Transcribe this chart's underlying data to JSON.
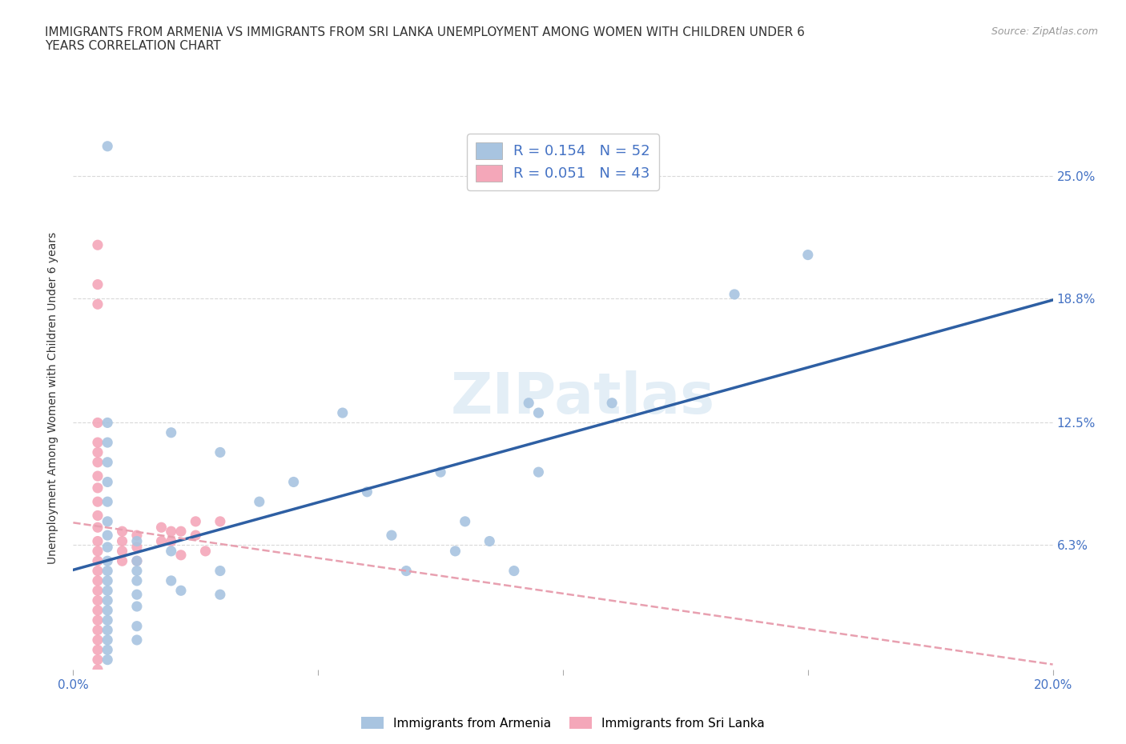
{
  "title": "IMMIGRANTS FROM ARMENIA VS IMMIGRANTS FROM SRI LANKA UNEMPLOYMENT AMONG WOMEN WITH CHILDREN UNDER 6\nYEARS CORRELATION CHART",
  "source": "Source: ZipAtlas.com",
  "xlim": [
    0.0,
    0.22
  ],
  "ylim": [
    -0.005,
    0.285
  ],
  "plot_xlim": [
    0.0,
    0.2
  ],
  "plot_ylim": [
    0.0,
    0.275
  ],
  "xtick_vals": [
    0.0,
    0.05,
    0.1,
    0.15,
    0.2
  ],
  "xtick_labels": [
    "0.0%",
    "",
    "",
    "",
    "20.0%"
  ],
  "ytick_vals": [
    0.0,
    0.063,
    0.125,
    0.188,
    0.25
  ],
  "right_ytick_labels": [
    "25.0%",
    "18.8%",
    "12.5%",
    "6.3%"
  ],
  "right_ytick_vals": [
    0.25,
    0.188,
    0.125,
    0.063
  ],
  "armenia_color": "#a8c4e0",
  "srilanka_color": "#f4a7b9",
  "armenia_R": 0.154,
  "armenia_N": 52,
  "srilanka_R": 0.051,
  "srilanka_N": 43,
  "watermark": "ZIPatlas",
  "armenia_points": [
    [
      0.007,
      0.265
    ],
    [
      0.007,
      0.125
    ],
    [
      0.007,
      0.115
    ],
    [
      0.007,
      0.105
    ],
    [
      0.007,
      0.095
    ],
    [
      0.007,
      0.085
    ],
    [
      0.007,
      0.075
    ],
    [
      0.007,
      0.068
    ],
    [
      0.007,
      0.062
    ],
    [
      0.007,
      0.055
    ],
    [
      0.007,
      0.05
    ],
    [
      0.007,
      0.045
    ],
    [
      0.007,
      0.04
    ],
    [
      0.007,
      0.035
    ],
    [
      0.007,
      0.03
    ],
    [
      0.007,
      0.025
    ],
    [
      0.007,
      0.02
    ],
    [
      0.007,
      0.015
    ],
    [
      0.007,
      0.01
    ],
    [
      0.007,
      0.005
    ],
    [
      0.013,
      0.065
    ],
    [
      0.013,
      0.055
    ],
    [
      0.013,
      0.05
    ],
    [
      0.013,
      0.045
    ],
    [
      0.013,
      0.038
    ],
    [
      0.013,
      0.032
    ],
    [
      0.013,
      0.022
    ],
    [
      0.013,
      0.015
    ],
    [
      0.02,
      0.12
    ],
    [
      0.02,
      0.06
    ],
    [
      0.02,
      0.045
    ],
    [
      0.022,
      0.04
    ],
    [
      0.03,
      0.11
    ],
    [
      0.03,
      0.05
    ],
    [
      0.03,
      0.038
    ],
    [
      0.038,
      0.085
    ],
    [
      0.045,
      0.095
    ],
    [
      0.055,
      0.13
    ],
    [
      0.06,
      0.09
    ],
    [
      0.065,
      0.068
    ],
    [
      0.068,
      0.05
    ],
    [
      0.075,
      0.1
    ],
    [
      0.078,
      0.06
    ],
    [
      0.08,
      0.075
    ],
    [
      0.085,
      0.065
    ],
    [
      0.09,
      0.05
    ],
    [
      0.093,
      0.135
    ],
    [
      0.095,
      0.13
    ],
    [
      0.095,
      0.1
    ],
    [
      0.11,
      0.135
    ],
    [
      0.135,
      0.19
    ],
    [
      0.15,
      0.21
    ]
  ],
  "srilanka_points": [
    [
      0.005,
      0.215
    ],
    [
      0.005,
      0.195
    ],
    [
      0.005,
      0.185
    ],
    [
      0.005,
      0.125
    ],
    [
      0.005,
      0.115
    ],
    [
      0.005,
      0.11
    ],
    [
      0.005,
      0.105
    ],
    [
      0.005,
      0.098
    ],
    [
      0.005,
      0.092
    ],
    [
      0.005,
      0.085
    ],
    [
      0.005,
      0.078
    ],
    [
      0.005,
      0.072
    ],
    [
      0.005,
      0.065
    ],
    [
      0.005,
      0.06
    ],
    [
      0.005,
      0.055
    ],
    [
      0.005,
      0.05
    ],
    [
      0.005,
      0.045
    ],
    [
      0.005,
      0.04
    ],
    [
      0.005,
      0.035
    ],
    [
      0.005,
      0.03
    ],
    [
      0.005,
      0.025
    ],
    [
      0.005,
      0.02
    ],
    [
      0.005,
      0.015
    ],
    [
      0.005,
      0.01
    ],
    [
      0.005,
      0.005
    ],
    [
      0.005,
      0.0
    ],
    [
      0.01,
      0.07
    ],
    [
      0.01,
      0.065
    ],
    [
      0.01,
      0.06
    ],
    [
      0.01,
      0.055
    ],
    [
      0.013,
      0.068
    ],
    [
      0.013,
      0.062
    ],
    [
      0.013,
      0.055
    ],
    [
      0.018,
      0.072
    ],
    [
      0.018,
      0.065
    ],
    [
      0.02,
      0.07
    ],
    [
      0.02,
      0.065
    ],
    [
      0.022,
      0.07
    ],
    [
      0.022,
      0.058
    ],
    [
      0.025,
      0.075
    ],
    [
      0.025,
      0.068
    ],
    [
      0.027,
      0.06
    ],
    [
      0.03,
      0.075
    ]
  ],
  "title_fontsize": 11,
  "axis_label_color": "#4472c4",
  "grid_color": "#d9d9d9",
  "background_color": "#ffffff",
  "scatter_size": 90,
  "trend_armenia_color": "#2e5fa3",
  "trend_srilanka_color": "#e8a0b0"
}
